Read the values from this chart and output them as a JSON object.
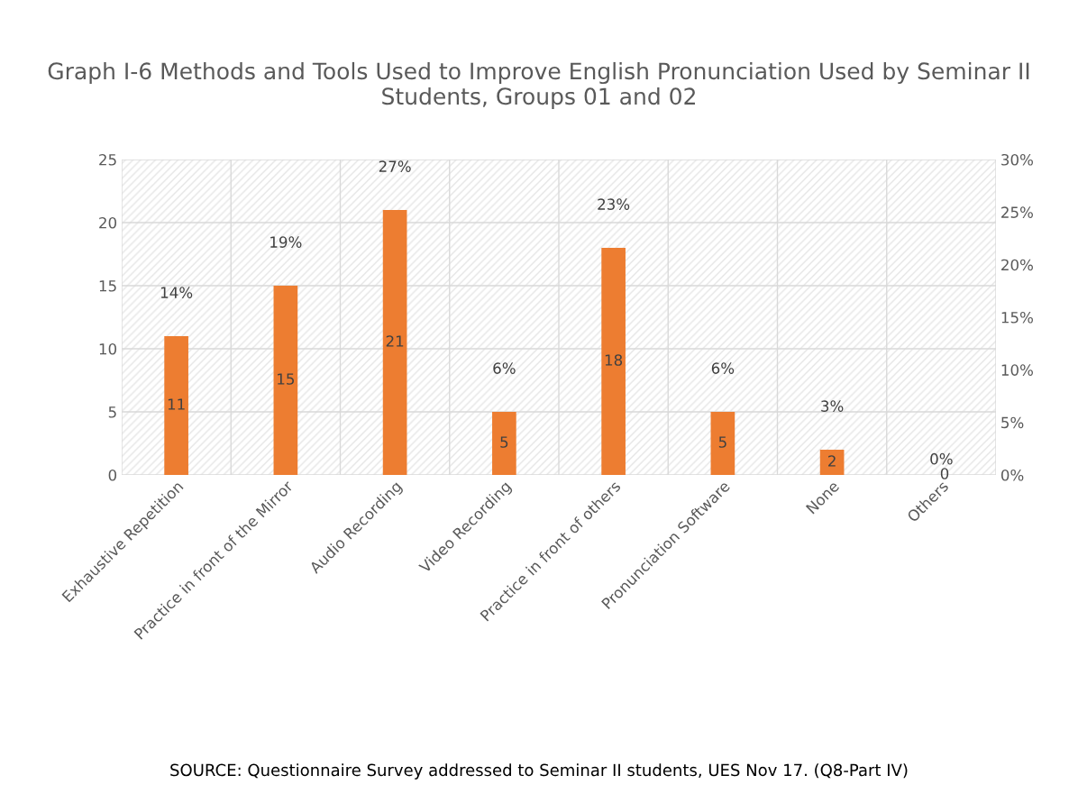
{
  "chart_data": {
    "type": "bar",
    "title": "Graph I-6 Methods and Tools Used to Improve English Pronunciation Used by Seminar II Students, Groups 01 and 02",
    "categories": [
      "Exhaustive Repetition",
      "Practice in front of the Mirror",
      "Audio Recording",
      "Video Recording",
      "Practice in front of others",
      "Pronunciation Software",
      "None",
      "Others"
    ],
    "series": [
      {
        "color": "#ed7d31",
        "values": [
          11,
          15,
          21,
          5,
          18,
          5,
          2,
          0
        ]
      }
    ],
    "legend": false,
    "data_labels": true,
    "ylim": [
      0,
      25
    ],
    "yticks": [
      0,
      5,
      10,
      15,
      20,
      25
    ],
    "y2lim": [
      0,
      30
    ],
    "y2ticks": [
      {
        "value": 0,
        "label": "0%"
      },
      {
        "value": 5,
        "label": "5%"
      },
      {
        "value": 10,
        "label": "10%"
      },
      {
        "value": 15,
        "label": "15%"
      },
      {
        "value": 20,
        "label": "20%"
      },
      {
        "value": 25,
        "label": "25%"
      },
      {
        "value": 30,
        "label": "30%"
      }
    ],
    "grid": true,
    "annotations": [
      "14%",
      "19%",
      "27%",
      "6%",
      "23%",
      "6%",
      "3%",
      "0%",
      "SOURCE: Questionnaire Survey addressed to Seminar II students, UES Nov 17. (Q8-Part IV)"
    ]
  }
}
